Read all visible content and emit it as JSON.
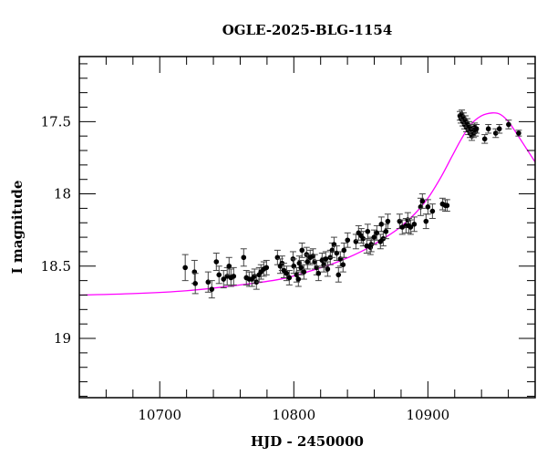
{
  "chart_data": {
    "type": "scatter",
    "title": "OGLE-2025-BLG-1154",
    "xlabel": "HJD - 2450000",
    "ylabel": "I magnitude",
    "xlim": [
      10640,
      10980
    ],
    "ylim": [
      19.41,
      17.05
    ],
    "y_inverted": true,
    "grid": false,
    "legend": null,
    "x_major_ticks": [
      10700,
      10800,
      10900
    ],
    "x_tick_labels": [
      "10700",
      "10800",
      "10900"
    ],
    "x_minor_step": 20,
    "y_major_ticks": [
      17.5,
      18,
      18.5,
      19
    ],
    "y_tick_labels": [
      "17.5",
      "18",
      "18.5",
      "19"
    ],
    "y_minor_step": 0.1,
    "colors": {
      "points": "#000000",
      "model": "#ff00ff",
      "axes": "#000000"
    },
    "series": [
      {
        "name": "OGLE photometry",
        "kind": "scatter_errorbars",
        "points": [
          {
            "x": 10719.0,
            "y": 18.51,
            "err": 0.09
          },
          {
            "x": 10725.9,
            "y": 18.54,
            "err": 0.08
          },
          {
            "x": 10726.5,
            "y": 18.62,
            "err": 0.07
          },
          {
            "x": 10736.1,
            "y": 18.61,
            "err": 0.07
          },
          {
            "x": 10738.8,
            "y": 18.66,
            "err": 0.06
          },
          {
            "x": 10742.2,
            "y": 18.47,
            "err": 0.06
          },
          {
            "x": 10744.2,
            "y": 18.56,
            "err": 0.06
          },
          {
            "x": 10747.6,
            "y": 18.59,
            "err": 0.06
          },
          {
            "x": 10750.3,
            "y": 18.57,
            "err": 0.06
          },
          {
            "x": 10751.7,
            "y": 18.5,
            "err": 0.06
          },
          {
            "x": 10753.1,
            "y": 18.58,
            "err": 0.06
          },
          {
            "x": 10755.1,
            "y": 18.57,
            "err": 0.06
          },
          {
            "x": 10762.6,
            "y": 18.44,
            "err": 0.06
          },
          {
            "x": 10764.6,
            "y": 18.58,
            "err": 0.05
          },
          {
            "x": 10766.7,
            "y": 18.59,
            "err": 0.05
          },
          {
            "x": 10768.7,
            "y": 18.59,
            "err": 0.05
          },
          {
            "x": 10770.7,
            "y": 18.57,
            "err": 0.05
          },
          {
            "x": 10772.1,
            "y": 18.61,
            "err": 0.05
          },
          {
            "x": 10774.1,
            "y": 18.56,
            "err": 0.05
          },
          {
            "x": 10775.5,
            "y": 18.54,
            "err": 0.05
          },
          {
            "x": 10777.6,
            "y": 18.52,
            "err": 0.05
          },
          {
            "x": 10779.6,
            "y": 18.51,
            "err": 0.05
          },
          {
            "x": 10787.8,
            "y": 18.44,
            "err": 0.05
          },
          {
            "x": 10789.9,
            "y": 18.5,
            "err": 0.05
          },
          {
            "x": 10791.2,
            "y": 18.48,
            "err": 0.05
          },
          {
            "x": 10792.6,
            "y": 18.53,
            "err": 0.05
          },
          {
            "x": 10794.6,
            "y": 18.55,
            "err": 0.05
          },
          {
            "x": 10796.6,
            "y": 18.58,
            "err": 0.05
          },
          {
            "x": 10799.4,
            "y": 18.45,
            "err": 0.05
          },
          {
            "x": 10800.0,
            "y": 18.5,
            "err": 0.05
          },
          {
            "x": 10802.1,
            "y": 18.56,
            "err": 0.05
          },
          {
            "x": 10803.4,
            "y": 18.59,
            "err": 0.05
          },
          {
            "x": 10804.1,
            "y": 18.48,
            "err": 0.05
          },
          {
            "x": 10805.4,
            "y": 18.51,
            "err": 0.05
          },
          {
            "x": 10806.1,
            "y": 18.39,
            "err": 0.05
          },
          {
            "x": 10807.5,
            "y": 18.54,
            "err": 0.05
          },
          {
            "x": 10809.5,
            "y": 18.42,
            "err": 0.05
          },
          {
            "x": 10810.2,
            "y": 18.47,
            "err": 0.05
          },
          {
            "x": 10812.2,
            "y": 18.44,
            "err": 0.05
          },
          {
            "x": 10814.3,
            "y": 18.43,
            "err": 0.05
          },
          {
            "x": 10815.6,
            "y": 18.47,
            "err": 0.05
          },
          {
            "x": 10817.0,
            "y": 18.51,
            "err": 0.05
          },
          {
            "x": 10818.4,
            "y": 18.55,
            "err": 0.05
          },
          {
            "x": 10821.1,
            "y": 18.46,
            "err": 0.05
          },
          {
            "x": 10822.4,
            "y": 18.49,
            "err": 0.05
          },
          {
            "x": 10823.8,
            "y": 18.45,
            "err": 0.05
          },
          {
            "x": 10825.2,
            "y": 18.52,
            "err": 0.05
          },
          {
            "x": 10827.2,
            "y": 18.44,
            "err": 0.05
          },
          {
            "x": 10828.6,
            "y": 18.39,
            "err": 0.05
          },
          {
            "x": 10830.0,
            "y": 18.35,
            "err": 0.05
          },
          {
            "x": 10832.0,
            "y": 18.41,
            "err": 0.05
          },
          {
            "x": 10833.3,
            "y": 18.56,
            "err": 0.05
          },
          {
            "x": 10834.7,
            "y": 18.45,
            "err": 0.05
          },
          {
            "x": 10836.7,
            "y": 18.49,
            "err": 0.05
          },
          {
            "x": 10837.4,
            "y": 18.39,
            "err": 0.05
          },
          {
            "x": 10840.1,
            "y": 18.32,
            "err": 0.05
          },
          {
            "x": 10846.3,
            "y": 18.33,
            "err": 0.05
          },
          {
            "x": 10848.3,
            "y": 18.27,
            "err": 0.05
          },
          {
            "x": 10850.3,
            "y": 18.29,
            "err": 0.05
          },
          {
            "x": 10851.7,
            "y": 18.31,
            "err": 0.05
          },
          {
            "x": 10854.4,
            "y": 18.36,
            "err": 0.05
          },
          {
            "x": 10855.1,
            "y": 18.26,
            "err": 0.05
          },
          {
            "x": 10857.1,
            "y": 18.37,
            "err": 0.05
          },
          {
            "x": 10857.8,
            "y": 18.35,
            "err": 0.05
          },
          {
            "x": 10859.9,
            "y": 18.3,
            "err": 0.05
          },
          {
            "x": 10861.9,
            "y": 18.27,
            "err": 0.05
          },
          {
            "x": 10864.6,
            "y": 18.33,
            "err": 0.05
          },
          {
            "x": 10865.3,
            "y": 18.21,
            "err": 0.05
          },
          {
            "x": 10866.7,
            "y": 18.31,
            "err": 0.05
          },
          {
            "x": 10868.7,
            "y": 18.26,
            "err": 0.05
          },
          {
            "x": 10870.1,
            "y": 18.19,
            "err": 0.05
          },
          {
            "x": 10878.9,
            "y": 18.19,
            "err": 0.05
          },
          {
            "x": 10880.9,
            "y": 18.23,
            "err": 0.05
          },
          {
            "x": 10883.7,
            "y": 18.22,
            "err": 0.05
          },
          {
            "x": 10885.0,
            "y": 18.18,
            "err": 0.05
          },
          {
            "x": 10885.7,
            "y": 18.22,
            "err": 0.05
          },
          {
            "x": 10887.1,
            "y": 18.23,
            "err": 0.05
          },
          {
            "x": 10889.8,
            "y": 18.21,
            "err": 0.05
          },
          {
            "x": 10894.6,
            "y": 18.09,
            "err": 0.06
          },
          {
            "x": 10895.9,
            "y": 18.05,
            "err": 0.05
          },
          {
            "x": 10898.6,
            "y": 18.19,
            "err": 0.05
          },
          {
            "x": 10900.0,
            "y": 18.09,
            "err": 0.05
          },
          {
            "x": 10903.4,
            "y": 18.12,
            "err": 0.05
          },
          {
            "x": 10910.9,
            "y": 18.07,
            "err": 0.04
          },
          {
            "x": 10913.0,
            "y": 18.08,
            "err": 0.04
          },
          {
            "x": 10914.3,
            "y": 18.08,
            "err": 0.04
          },
          {
            "x": 10923.9,
            "y": 17.46,
            "err": 0.03
          },
          {
            "x": 10924.6,
            "y": 17.48,
            "err": 0.03
          },
          {
            "x": 10925.3,
            "y": 17.45,
            "err": 0.03
          },
          {
            "x": 10926.0,
            "y": 17.5,
            "err": 0.03
          },
          {
            "x": 10926.6,
            "y": 17.47,
            "err": 0.03
          },
          {
            "x": 10927.3,
            "y": 17.52,
            "err": 0.03
          },
          {
            "x": 10928.0,
            "y": 17.49,
            "err": 0.03
          },
          {
            "x": 10928.7,
            "y": 17.54,
            "err": 0.03
          },
          {
            "x": 10929.4,
            "y": 17.51,
            "err": 0.03
          },
          {
            "x": 10930.1,
            "y": 17.56,
            "err": 0.03
          },
          {
            "x": 10930.7,
            "y": 17.53,
            "err": 0.03
          },
          {
            "x": 10931.4,
            "y": 17.58,
            "err": 0.03
          },
          {
            "x": 10932.1,
            "y": 17.55,
            "err": 0.03
          },
          {
            "x": 10932.8,
            "y": 17.6,
            "err": 0.03
          },
          {
            "x": 10933.5,
            "y": 17.56,
            "err": 0.03
          },
          {
            "x": 10934.2,
            "y": 17.58,
            "err": 0.03
          },
          {
            "x": 10934.9,
            "y": 17.54,
            "err": 0.03
          },
          {
            "x": 10935.5,
            "y": 17.57,
            "err": 0.03
          },
          {
            "x": 10936.2,
            "y": 17.55,
            "err": 0.03
          },
          {
            "x": 10942.4,
            "y": 17.62,
            "err": 0.03
          },
          {
            "x": 10945.1,
            "y": 17.55,
            "err": 0.03
          },
          {
            "x": 10950.6,
            "y": 17.58,
            "err": 0.03
          },
          {
            "x": 10953.3,
            "y": 17.55,
            "err": 0.03
          },
          {
            "x": 10960.2,
            "y": 17.52,
            "err": 0.03
          },
          {
            "x": 10967.7,
            "y": 17.58,
            "err": 0.02
          }
        ]
      },
      {
        "name": "model",
        "kind": "line",
        "points": [
          {
            "x": 10640,
            "y": 18.7
          },
          {
            "x": 10680,
            "y": 18.69
          },
          {
            "x": 10720,
            "y": 18.67
          },
          {
            "x": 10760,
            "y": 18.63
          },
          {
            "x": 10790,
            "y": 18.59
          },
          {
            "x": 10810,
            "y": 18.54
          },
          {
            "x": 10830,
            "y": 18.48
          },
          {
            "x": 10850,
            "y": 18.4
          },
          {
            "x": 10865,
            "y": 18.32
          },
          {
            "x": 10878,
            "y": 18.24
          },
          {
            "x": 10890,
            "y": 18.14
          },
          {
            "x": 10900,
            "y": 18.03
          },
          {
            "x": 10910,
            "y": 17.88
          },
          {
            "x": 10918,
            "y": 17.74
          },
          {
            "x": 10925,
            "y": 17.62
          },
          {
            "x": 10932,
            "y": 17.52
          },
          {
            "x": 10940,
            "y": 17.46
          },
          {
            "x": 10948,
            "y": 17.44
          },
          {
            "x": 10954,
            "y": 17.45
          },
          {
            "x": 10960,
            "y": 17.5
          },
          {
            "x": 10966,
            "y": 17.58
          },
          {
            "x": 10973,
            "y": 17.68
          },
          {
            "x": 10980,
            "y": 17.78
          }
        ]
      }
    ]
  }
}
